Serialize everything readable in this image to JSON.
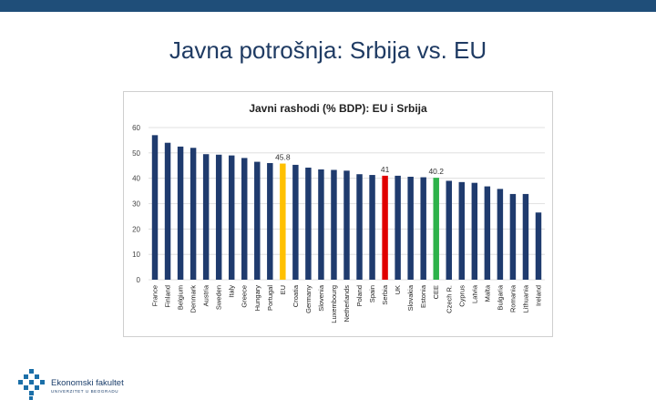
{
  "slide": {
    "title": "Javna potrošnja: Srbija vs. EU"
  },
  "logo": {
    "name": "Ekonomski fakultet",
    "subtitle": "UNIVERZITET U BEOGRADU"
  },
  "colors": {
    "default_bar": "#1f3b6e",
    "eu_bar": "#ffc000",
    "serbia_bar": "#e00000",
    "cee_bar": "#2db24a",
    "topbar": "#1f4e79"
  },
  "chart_data": {
    "type": "bar",
    "title": "Javni rashodi (% BDP): EU i Srbija",
    "xlabel": "",
    "ylabel": "",
    "ylim": [
      0,
      60
    ],
    "yticks": [
      0,
      10,
      20,
      30,
      40,
      50,
      60
    ],
    "grid": true,
    "categories": [
      "France",
      "Finland",
      "Belgium",
      "Denmark",
      "Austria",
      "Sweden",
      "Italy",
      "Greece",
      "Hungary",
      "Portugal",
      "EU",
      "Croatia",
      "Germany",
      "Slovenia",
      "Luxembourg",
      "Netherlands",
      "Poland",
      "Spain",
      "Serbia",
      "UK",
      "Slovakia",
      "Estonia",
      "CEE",
      "Czech R.",
      "Cyprus",
      "Latvia",
      "Malta",
      "Bulgaria",
      "Romania",
      "Lithuania",
      "Ireland"
    ],
    "values": [
      57,
      54,
      52.5,
      52,
      49.5,
      49.3,
      49,
      48,
      46.5,
      46,
      45.8,
      45.3,
      44.2,
      43.5,
      43.3,
      43,
      41.6,
      41.3,
      41,
      41,
      40.6,
      40.4,
      40.2,
      39,
      38.5,
      38.2,
      36.8,
      35.8,
      33.8,
      33.8,
      26.5
    ],
    "highlight": {
      "EU": "eu_bar",
      "Serbia": "serbia_bar",
      "CEE": "cee_bar"
    },
    "data_labels": [
      {
        "category": "EU",
        "text": "45.8"
      },
      {
        "category": "Serbia",
        "text": "41"
      },
      {
        "category": "CEE",
        "text": "40.2"
      }
    ]
  }
}
